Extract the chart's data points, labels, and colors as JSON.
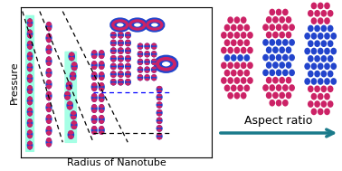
{
  "fig_width": 3.78,
  "fig_height": 1.89,
  "dpi": 100,
  "bg_color": "#ffffff",
  "left_panel": {
    "xlabel": "Radius of Nanotube",
    "ylabel": "Pressure",
    "xlabel_fontsize": 8,
    "ylabel_fontsize": 8
  },
  "arrow": {
    "text": "Aspect ratio",
    "color": "#1a7a8a",
    "fontsize": 9
  },
  "colors": {
    "blue": "#2244cc",
    "red": "#cc2266",
    "cyan": "#88ffdd",
    "teal": "#1a7a8a"
  }
}
